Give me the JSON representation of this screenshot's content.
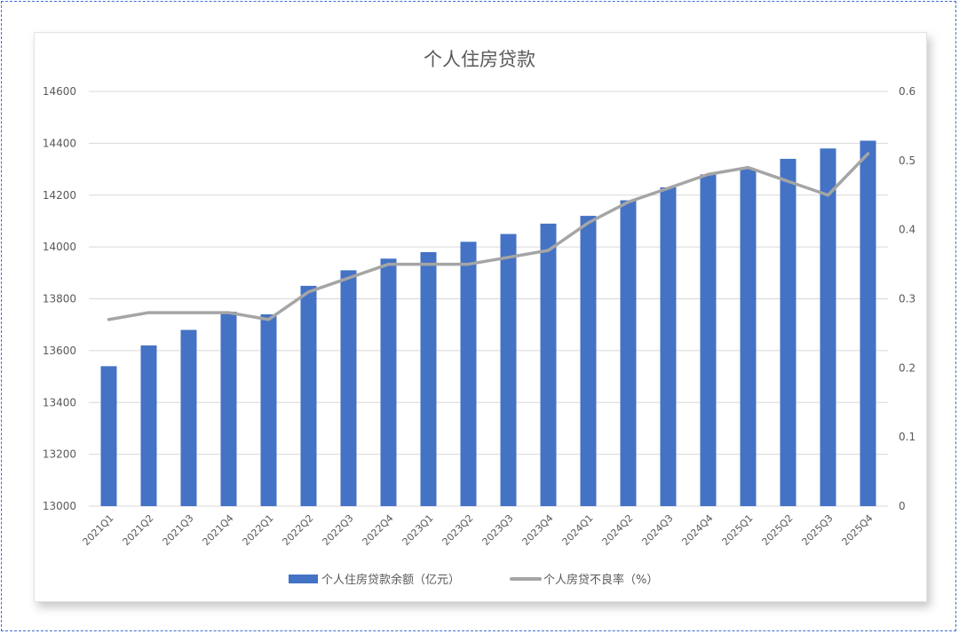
{
  "chart_data": {
    "type": "bar",
    "title": "个人住房贷款",
    "categories": [
      "2021Q1",
      "2021Q2",
      "2021Q3",
      "2021Q4",
      "2022Q1",
      "2022Q2",
      "2022Q3",
      "2022Q4",
      "2023Q1",
      "2023Q2",
      "2023Q3",
      "2023Q4",
      "2024Q1",
      "2024Q2",
      "2024Q3",
      "2024Q4",
      "2025Q1",
      "2025Q2",
      "2025Q3",
      "2025Q4"
    ],
    "series": [
      {
        "name": "个人住房贷款余额（亿元）",
        "type": "bar",
        "axis": "left",
        "color": "#4472c4",
        "values": [
          13540,
          13620,
          13680,
          13750,
          13740,
          13850,
          13910,
          13955,
          13980,
          14020,
          14050,
          14090,
          14120,
          14180,
          14230,
          14280,
          14300,
          14340,
          14380,
          14410
        ]
      },
      {
        "name": "个人房贷不良率（%）",
        "type": "line",
        "axis": "right",
        "color": "#a5a5a5",
        "values": [
          0.27,
          0.28,
          0.28,
          0.28,
          0.27,
          0.31,
          0.33,
          0.35,
          0.35,
          0.35,
          0.36,
          0.37,
          0.41,
          0.44,
          0.46,
          0.48,
          0.49,
          0.47,
          0.45,
          0.51
        ]
      }
    ],
    "y_left": {
      "min": 13000,
      "max": 14600,
      "ticks": [
        "13000",
        "13200",
        "13400",
        "13600",
        "13800",
        "14000",
        "14200",
        "14400",
        "14600"
      ]
    },
    "y_right": {
      "min": 0,
      "max": 0.6,
      "ticks": [
        "0",
        "0.1",
        "0.2",
        "0.3",
        "0.4",
        "0.5",
        "0.6"
      ]
    },
    "grid": true,
    "legend_position": "bottom"
  }
}
